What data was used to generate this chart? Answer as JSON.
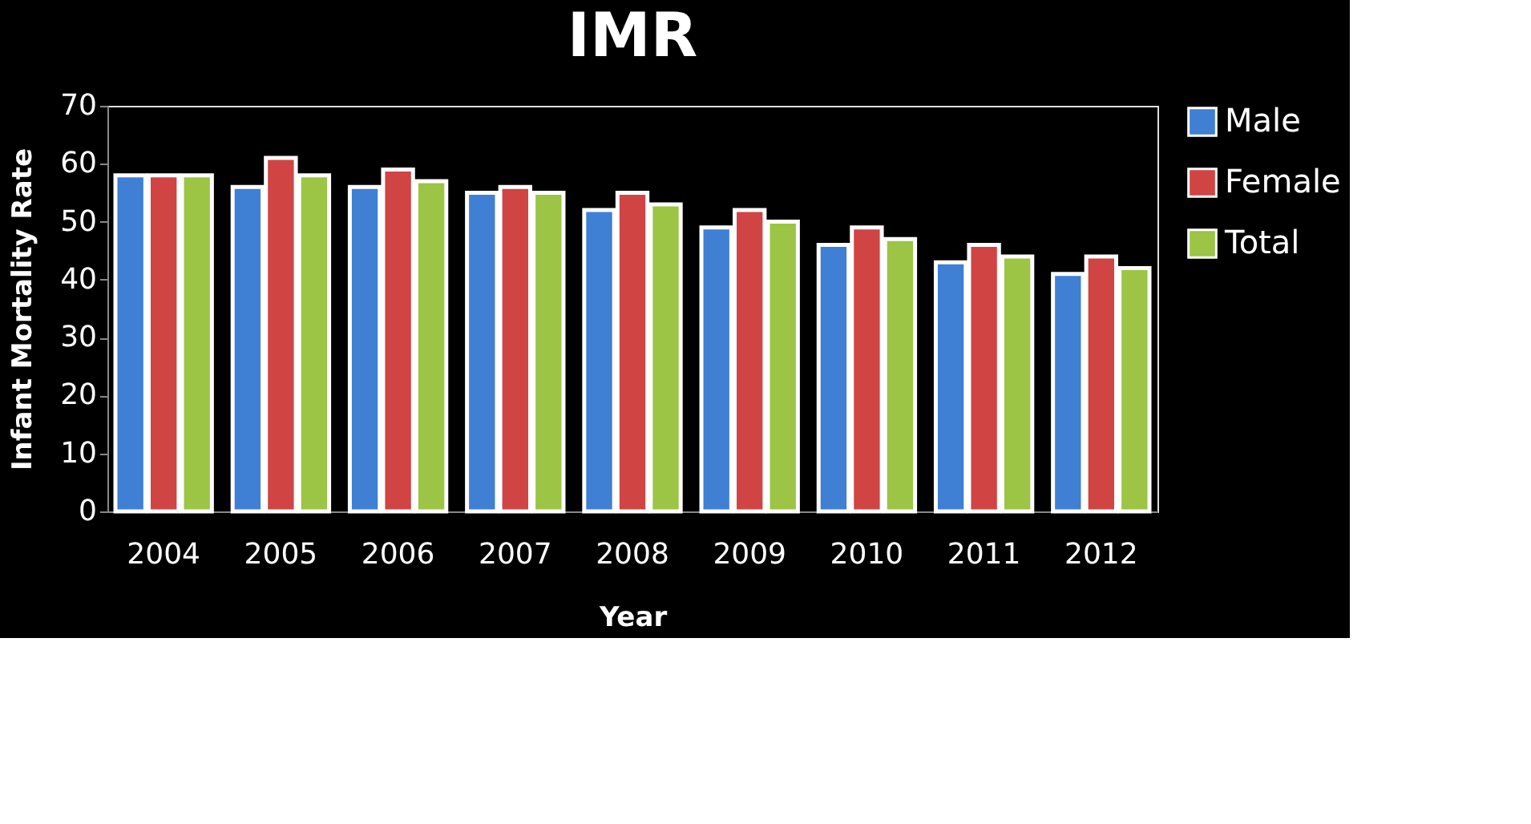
{
  "chart_data": {
    "type": "bar",
    "title": "IMR",
    "xlabel": "Year",
    "ylabel": "Infant Mortality Rate",
    "categories": [
      "2004",
      "2005",
      "2006",
      "2007",
      "2008",
      "2009",
      "2010",
      "2011",
      "2012"
    ],
    "series": [
      {
        "name": "Male",
        "color": "#3f7fd4",
        "values": [
          58,
          56,
          56,
          55,
          52,
          49,
          46,
          43,
          41
        ]
      },
      {
        "name": "Female",
        "color": "#d04444",
        "values": [
          58,
          61,
          59,
          56,
          55,
          52,
          49,
          46,
          44
        ]
      },
      {
        "name": "Total",
        "color": "#9cc445",
        "values": [
          58,
          58,
          57,
          55,
          53,
          50,
          47,
          44,
          42
        ]
      }
    ],
    "ylim": [
      0,
      70
    ],
    "yticks": [
      0,
      10,
      20,
      30,
      40,
      50,
      60,
      70
    ],
    "grid": false,
    "legend": "right"
  }
}
